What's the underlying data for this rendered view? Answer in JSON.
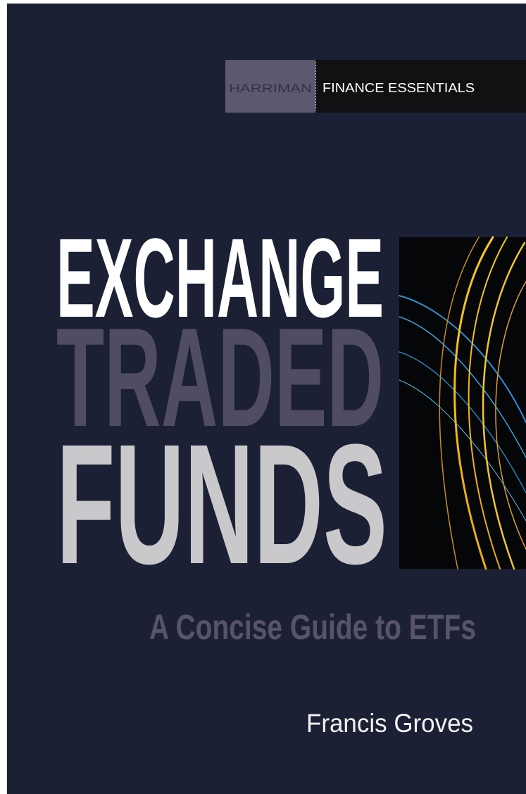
{
  "series": {
    "publisher": "HARRIMAN",
    "name": "FINANCE ESSENTIALS"
  },
  "title": {
    "lines": [
      "EXCHANGE",
      "TRADED",
      "FUNDS"
    ]
  },
  "subtitle": "A Concise Guide to ETFs",
  "author": "Francis Groves"
}
